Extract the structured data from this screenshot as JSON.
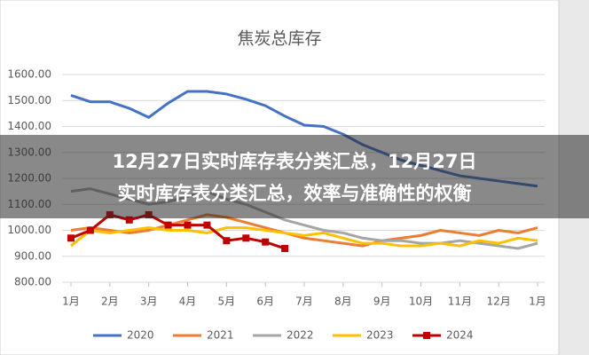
{
  "chart_data": {
    "type": "line",
    "title": "焦炭总库存",
    "x": [
      0,
      0.5,
      1,
      1.5,
      2,
      2.5,
      3,
      3.5,
      4,
      4.5,
      5,
      5.5,
      6,
      6.5,
      7,
      7.5,
      8,
      8.5,
      9,
      9.5,
      10,
      10.5,
      11,
      11.5,
      12
    ],
    "xlim": [
      0,
      12
    ],
    "xticks": [
      {
        "value": 0,
        "label": "1月"
      },
      {
        "value": 1,
        "label": "2月"
      },
      {
        "value": 2,
        "label": "3月"
      },
      {
        "value": 3,
        "label": "4月"
      },
      {
        "value": 4,
        "label": "5月"
      },
      {
        "value": 5,
        "label": "6月"
      },
      {
        "value": 6,
        "label": "7月"
      },
      {
        "value": 7,
        "label": "8月"
      },
      {
        "value": 8,
        "label": "9月"
      },
      {
        "value": 9,
        "label": "10月"
      },
      {
        "value": 10,
        "label": "11月"
      },
      {
        "value": 11,
        "label": "12月"
      },
      {
        "value": 12,
        "label": "1月"
      }
    ],
    "ylim": [
      800,
      1600
    ],
    "yticks": [
      {
        "value": 800,
        "label": "800.00"
      },
      {
        "value": 900,
        "label": "900.00"
      },
      {
        "value": 1000,
        "label": "1000.00"
      },
      {
        "value": 1100,
        "label": "1100.00"
      },
      {
        "value": 1200,
        "label": "1200.00"
      },
      {
        "value": 1300,
        "label": "1300.00"
      },
      {
        "value": 1400,
        "label": "1400.00"
      },
      {
        "value": 1500,
        "label": "1500.00"
      },
      {
        "value": 1600,
        "label": "1600.00"
      }
    ],
    "grid": true,
    "legend": "bottom",
    "series": [
      {
        "name": "2020",
        "color": "#4472c4",
        "values": [
          1520,
          1495,
          1495,
          1470,
          1435,
          1490,
          1535,
          1535,
          1525,
          1505,
          1480,
          1440,
          1405,
          1400,
          1370,
          1330,
          1300,
          1270,
          1250,
          1230,
          1210,
          1200,
          1190,
          1180,
          1170
        ]
      },
      {
        "name": "2021",
        "color": "#ed7d31",
        "values": [
          1000,
          1010,
          1000,
          990,
          1000,
          1020,
          1040,
          1060,
          1050,
          1030,
          1010,
          990,
          970,
          960,
          950,
          940,
          960,
          970,
          980,
          1000,
          990,
          980,
          1000,
          990,
          1010
        ]
      },
      {
        "name": "2022",
        "color": "#a5a5a5",
        "values": [
          1150,
          1160,
          1140,
          1120,
          1100,
          1110,
          1130,
          1150,
          1120,
          1100,
          1070,
          1040,
          1020,
          1000,
          990,
          970,
          960,
          960,
          950,
          950,
          960,
          950,
          940,
          930,
          950
        ]
      },
      {
        "name": "2023",
        "color": "#ffc000",
        "values": [
          940,
          1000,
          990,
          1000,
          1010,
          1000,
          1000,
          990,
          1010,
          1010,
          1000,
          990,
          980,
          990,
          970,
          950,
          950,
          940,
          940,
          950,
          940,
          960,
          950,
          970,
          960
        ]
      },
      {
        "name": "2024",
        "color": "#c00000",
        "marker": "square",
        "values": [
          970,
          1000,
          1060,
          1040,
          1060,
          1020,
          1020,
          1020,
          960,
          970,
          955,
          930,
          null,
          null,
          null,
          null,
          null,
          null,
          null,
          null,
          null,
          null,
          null,
          null,
          null
        ]
      }
    ]
  },
  "overlay": {
    "lines": [
      "12月27日实时库存表分类汇总，12月27日",
      "实时库存表分类汇总，效率与准确性的权衡"
    ]
  }
}
